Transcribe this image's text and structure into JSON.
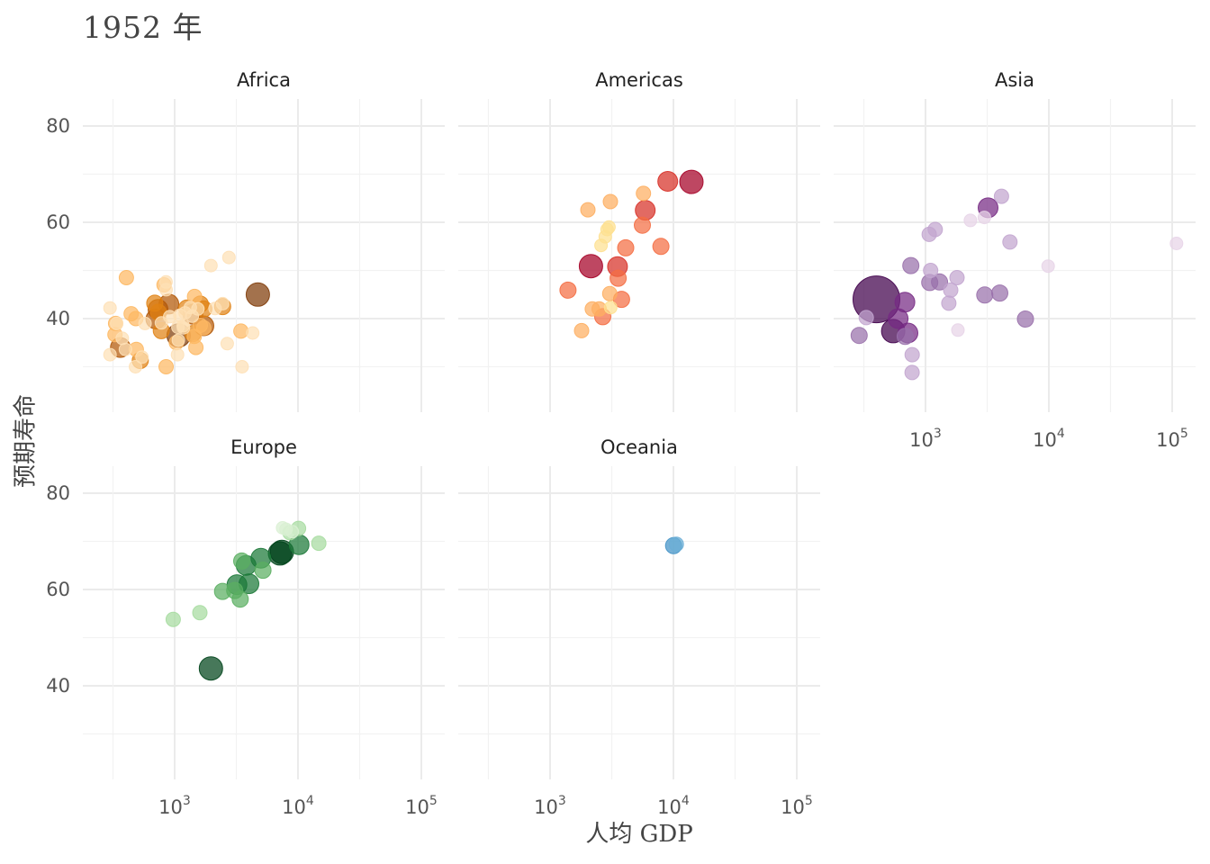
{
  "title": "1952 年",
  "chart_data": {
    "type": "scatter",
    "title": "1952 年",
    "xlabel": "人均 GDP",
    "ylabel": "预期寿命",
    "x_scale": "log10",
    "xlim": [
      200,
      130000
    ],
    "ylim": [
      20,
      86
    ],
    "x_ticks": [
      1000,
      10000,
      100000
    ],
    "x_tick_labels": [
      {
        "base": "10",
        "exp": "3"
      },
      {
        "base": "10",
        "exp": "4"
      },
      {
        "base": "10",
        "exp": "5"
      }
    ],
    "y_ticks": [
      40,
      60,
      80
    ],
    "y_tick_labels": [
      "40",
      "60",
      "80"
    ],
    "grid": true,
    "legend": "none",
    "facets": [
      "Africa",
      "Americas",
      "Asia",
      "Europe",
      "Oceania"
    ],
    "series": [
      {
        "name": "Africa",
        "colors": [
          "#fee0b6",
          "#fdb863",
          "#e08214",
          "#b35806",
          "#7f3b08"
        ],
        "points": [
          {
            "x": 2449,
            "y": 43.1,
            "pop": 1
          },
          {
            "x": 3521,
            "y": 30.0,
            "pop": 1
          },
          {
            "x": 1063,
            "y": 38.2,
            "pop": 1
          },
          {
            "x": 851,
            "y": 47.6,
            "pop": 1
          },
          {
            "x": 543,
            "y": 32.0,
            "pop": 1
          },
          {
            "x": 339,
            "y": 39.0,
            "pop": 1
          },
          {
            "x": 1173,
            "y": 38.5,
            "pop": 1
          },
          {
            "x": 1071,
            "y": 35.5,
            "pop": 1
          },
          {
            "x": 1179,
            "y": 38.1,
            "pop": 1
          },
          {
            "x": 1103,
            "y": 40.7,
            "pop": 1
          },
          {
            "x": 781,
            "y": 39.1,
            "pop": 1
          },
          {
            "x": 2126,
            "y": 42.1,
            "pop": 1
          },
          {
            "x": 1389,
            "y": 40.5,
            "pop": 1
          },
          {
            "x": 2669,
            "y": 34.8,
            "pop": 1
          },
          {
            "x": 376,
            "y": 35.9,
            "pop": 1
          },
          {
            "x": 4293,
            "y": 37.0,
            "pop": 1
          },
          {
            "x": 1969,
            "y": 51.0,
            "pop": 1
          },
          {
            "x": 2753,
            "y": 52.7,
            "pop": 1
          },
          {
            "x": 299,
            "y": 42.2,
            "pop": 1
          },
          {
            "x": 911,
            "y": 40.4,
            "pop": 1
          },
          {
            "x": 1544,
            "y": 42.0,
            "pop": 1
          },
          {
            "x": 1339,
            "y": 42.3,
            "pop": 1
          },
          {
            "x": 1215,
            "y": 41.2,
            "pop": 1
          },
          {
            "x": 481,
            "y": 30.0,
            "pop": 1
          },
          {
            "x": 399,
            "y": 33.6,
            "pop": 1
          },
          {
            "x": 575,
            "y": 39.0,
            "pop": 1
          },
          {
            "x": 1055,
            "y": 32.5,
            "pop": 1
          },
          {
            "x": 299,
            "y": 32.5,
            "pop": 1
          },
          {
            "x": 853,
            "y": 46.0,
            "pop": 1
          },
          {
            "x": 1443,
            "y": 36.3,
            "pop": 2
          },
          {
            "x": 489,
            "y": 33.6,
            "pop": 2
          },
          {
            "x": 328,
            "y": 36.7,
            "pop": 2
          },
          {
            "x": 820,
            "y": 47.0,
            "pop": 2
          },
          {
            "x": 1725,
            "y": 38.1,
            "pop": 2
          },
          {
            "x": 1488,
            "y": 34.0,
            "pop": 2
          },
          {
            "x": 3448,
            "y": 37.4,
            "pop": 2
          },
          {
            "x": 853,
            "y": 30.0,
            "pop": 2
          },
          {
            "x": 485,
            "y": 40.0,
            "pop": 2
          },
          {
            "x": 1615,
            "y": 38.6,
            "pop": 2
          },
          {
            "x": 1032,
            "y": 35.0,
            "pop": 2
          },
          {
            "x": 1450,
            "y": 44.6,
            "pop": 2
          },
          {
            "x": 444,
            "y": 41.0,
            "pop": 2
          },
          {
            "x": 406,
            "y": 48.5,
            "pop": 2
          },
          {
            "x": 332,
            "y": 39.0,
            "pop": 2
          },
          {
            "x": 690,
            "y": 43.2,
            "pop": 3
          },
          {
            "x": 1725,
            "y": 42.0,
            "pop": 3
          },
          {
            "x": 780,
            "y": 37.5,
            "pop": 3
          },
          {
            "x": 1404,
            "y": 36.9,
            "pop": 3
          },
          {
            "x": 526,
            "y": 31.3,
            "pop": 3
          },
          {
            "x": 738,
            "y": 41.3,
            "pop": 3
          },
          {
            "x": 1615,
            "y": 43.0,
            "pop": 3
          },
          {
            "x": 2449,
            "y": 42.5,
            "pop": 3
          },
          {
            "x": 1254,
            "y": 42.2,
            "pop": 3
          },
          {
            "x": 704,
            "y": 39.9,
            "pop": 4
          },
          {
            "x": 1407,
            "y": 40.9,
            "pop": 4
          },
          {
            "x": 733,
            "y": 41.9,
            "pop": 4
          },
          {
            "x": 363,
            "y": 34.0,
            "pop": 4
          },
          {
            "x": 1726,
            "y": 38.5,
            "pop": 4
          },
          {
            "x": 898,
            "y": 43.0,
            "pop": 4
          },
          {
            "x": 1077,
            "y": 36.5,
            "pop": 5
          },
          {
            "x": 4725,
            "y": 45.0,
            "pop": 5
          }
        ]
      },
      {
        "name": "Americas",
        "colors": [
          "#fee090",
          "#fdae61",
          "#f46d43",
          "#d73027",
          "#a50026"
        ],
        "points": [
          {
            "x": 2588,
            "y": 55.2,
            "pop": 1
          },
          {
            "x": 2800,
            "y": 57.0,
            "pop": 1
          },
          {
            "x": 3000,
            "y": 59.0,
            "pop": 1
          },
          {
            "x": 3100,
            "y": 42.3,
            "pop": 1
          },
          {
            "x": 2900,
            "y": 58.5,
            "pop": 1
          },
          {
            "x": 3048,
            "y": 45.2,
            "pop": 2
          },
          {
            "x": 5716,
            "y": 66.0,
            "pop": 2
          },
          {
            "x": 3082,
            "y": 64.3,
            "pop": 2
          },
          {
            "x": 2024,
            "y": 62.6,
            "pop": 2
          },
          {
            "x": 2500,
            "y": 42.0,
            "pop": 2
          },
          {
            "x": 1800,
            "y": 37.5,
            "pop": 2
          },
          {
            "x": 2200,
            "y": 42.0,
            "pop": 2
          },
          {
            "x": 1398,
            "y": 45.9,
            "pop": 3
          },
          {
            "x": 2673,
            "y": 40.4,
            "pop": 3
          },
          {
            "x": 3561,
            "y": 48.4,
            "pop": 3
          },
          {
            "x": 5596,
            "y": 59.4,
            "pop": 3
          },
          {
            "x": 7914,
            "y": 55.0,
            "pop": 3
          },
          {
            "x": 4100,
            "y": 54.7,
            "pop": 3
          },
          {
            "x": 3800,
            "y": 44.0,
            "pop": 3
          },
          {
            "x": 5911,
            "y": 62.5,
            "pop": 4
          },
          {
            "x": 3520,
            "y": 50.8,
            "pop": 4
          },
          {
            "x": 9000,
            "y": 68.5,
            "pop": 4
          },
          {
            "x": 2144,
            "y": 50.9,
            "pop": 5
          },
          {
            "x": 13990,
            "y": 68.4,
            "pop": 5
          }
        ]
      },
      {
        "name": "Asia",
        "colors": [
          "#e7d4e8",
          "#c2a5cf",
          "#9970ab",
          "#762a83",
          "#40004b"
        ],
        "points": [
          {
            "x": 108382,
            "y": 55.6,
            "pop": 1
          },
          {
            "x": 9867,
            "y": 50.9,
            "pop": 1
          },
          {
            "x": 1831,
            "y": 37.6,
            "pop": 1
          },
          {
            "x": 2315,
            "y": 60.4,
            "pop": 1
          },
          {
            "x": 3000,
            "y": 61.0,
            "pop": 1
          },
          {
            "x": 4835,
            "y": 55.9,
            "pop": 2
          },
          {
            "x": 4130,
            "y": 65.4,
            "pop": 2
          },
          {
            "x": 1200,
            "y": 58.5,
            "pop": 2
          },
          {
            "x": 1072,
            "y": 57.5,
            "pop": 2
          },
          {
            "x": 1546,
            "y": 43.2,
            "pop": 2
          },
          {
            "x": 1600,
            "y": 45.9,
            "pop": 2
          },
          {
            "x": 331,
            "y": 40.2,
            "pop": 2
          },
          {
            "x": 780,
            "y": 32.5,
            "pop": 2
          },
          {
            "x": 779,
            "y": 28.8,
            "pop": 2
          },
          {
            "x": 1800,
            "y": 48.5,
            "pop": 2
          },
          {
            "x": 1100,
            "y": 50.0,
            "pop": 2
          },
          {
            "x": 684,
            "y": 36.3,
            "pop": 3
          },
          {
            "x": 1083,
            "y": 47.5,
            "pop": 3
          },
          {
            "x": 3023,
            "y": 44.9,
            "pop": 3
          },
          {
            "x": 6459,
            "y": 39.9,
            "pop": 3
          },
          {
            "x": 4000,
            "y": 45.3,
            "pop": 3
          },
          {
            "x": 760,
            "y": 51.0,
            "pop": 3
          },
          {
            "x": 1300,
            "y": 47.6,
            "pop": 3
          },
          {
            "x": 290,
            "y": 36.5,
            "pop": 3
          },
          {
            "x": 600,
            "y": 40.0,
            "pop": 4
          },
          {
            "x": 680,
            "y": 43.4,
            "pop": 4
          },
          {
            "x": 720,
            "y": 37.0,
            "pop": 4
          },
          {
            "x": 3217,
            "y": 63.0,
            "pop": 4
          },
          {
            "x": 547,
            "y": 37.4,
            "pop": 5
          },
          {
            "x": 400,
            "y": 44.0,
            "pop": 6
          }
        ]
      },
      {
        "name": "Europe",
        "colors": [
          "#d9f0d3",
          "#a6dba0",
          "#5aae61",
          "#1b7837",
          "#00441b"
        ],
        "points": [
          {
            "x": 8000,
            "y": 72.5,
            "pop": 1
          },
          {
            "x": 9000,
            "y": 72.0,
            "pop": 1
          },
          {
            "x": 7500,
            "y": 72.8,
            "pop": 1
          },
          {
            "x": 1601,
            "y": 55.2,
            "pop": 2
          },
          {
            "x": 973,
            "y": 53.8,
            "pop": 2
          },
          {
            "x": 14734,
            "y": 69.6,
            "pop": 2
          },
          {
            "x": 10095,
            "y": 72.7,
            "pop": 2
          },
          {
            "x": 8600,
            "y": 71.8,
            "pop": 2
          },
          {
            "x": 2444,
            "y": 59.6,
            "pop": 3
          },
          {
            "x": 3068,
            "y": 59.8,
            "pop": 3
          },
          {
            "x": 3400,
            "y": 58.0,
            "pop": 3
          },
          {
            "x": 5200,
            "y": 64.0,
            "pop": 3
          },
          {
            "x": 3500,
            "y": 65.9,
            "pop": 3
          },
          {
            "x": 3200,
            "y": 61.0,
            "pop": 4
          },
          {
            "x": 4000,
            "y": 61.2,
            "pop": 4
          },
          {
            "x": 3800,
            "y": 65.0,
            "pop": 4
          },
          {
            "x": 5000,
            "y": 66.5,
            "pop": 4
          },
          {
            "x": 10200,
            "y": 69.3,
            "pop": 4
          },
          {
            "x": 7145,
            "y": 67.5,
            "pop": 5
          },
          {
            "x": 7400,
            "y": 67.8,
            "pop": 5
          },
          {
            "x": 1969,
            "y": 43.6,
            "pop": 5
          }
        ]
      },
      {
        "name": "Oceania",
        "colors": [
          "#c6dbef",
          "#6baed6",
          "#4292c6",
          "#2166ac",
          "#08306b"
        ],
        "points": [
          {
            "x": 10040,
            "y": 69.1,
            "pop": 3
          },
          {
            "x": 10557,
            "y": 69.4,
            "pop": 2
          }
        ]
      }
    ]
  }
}
